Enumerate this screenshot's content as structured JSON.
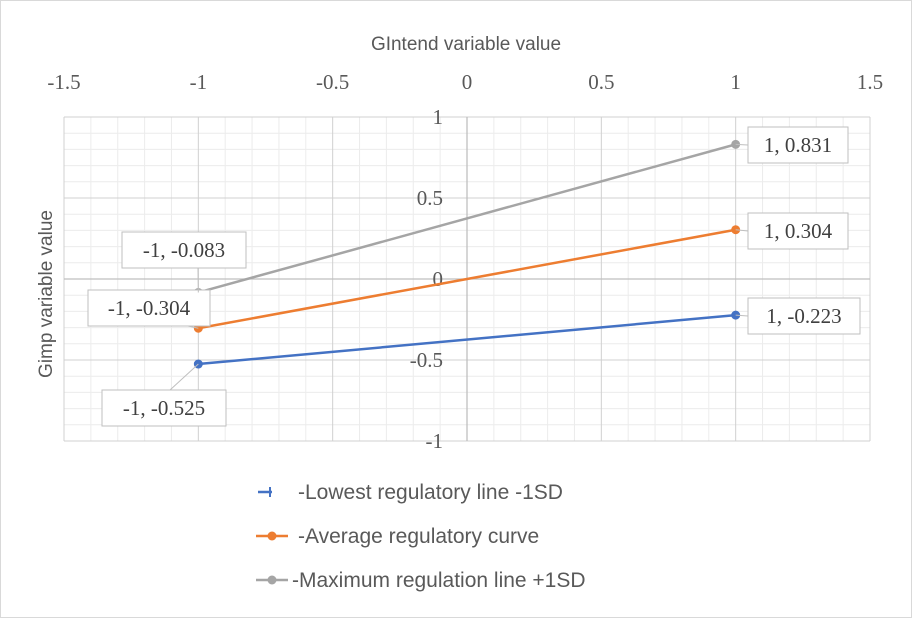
{
  "chart_data": {
    "type": "scatter",
    "xlabel": "GIntend variable value",
    "ylabel": "Gimp variable value",
    "xlim": [
      -1.5,
      1.5
    ],
    "ylim": [
      -1,
      1
    ],
    "x_ticks": [
      "-1.5",
      "-1",
      "-0.5",
      "0",
      "0.5",
      "1",
      "1.5"
    ],
    "y_ticks": [
      "1",
      "0.5",
      "0",
      "-0.5",
      "-1"
    ],
    "x_axis_position": "top",
    "grid": true,
    "legend_position": "bottom",
    "series": [
      {
        "name": "-Lowest regulatory line -1SD",
        "color": "#4472C4",
        "x": [
          -1,
          1
        ],
        "y": [
          -0.525,
          -0.223
        ],
        "labels": [
          "-1, -0.525",
          "1, -0.223"
        ]
      },
      {
        "name": "-Average regulatory curve",
        "color": "#ED7D31",
        "x": [
          -1,
          1
        ],
        "y": [
          -0.304,
          0.304
        ],
        "labels": [
          "-1, -0.304",
          "1, 0.304"
        ]
      },
      {
        "name": "-Maximum regulation line +1SD",
        "color": "#A5A5A5",
        "x": [
          -1,
          1
        ],
        "y": [
          -0.083,
          0.831
        ],
        "labels": [
          "-1, -0.083",
          "1, 0.831"
        ]
      }
    ]
  }
}
